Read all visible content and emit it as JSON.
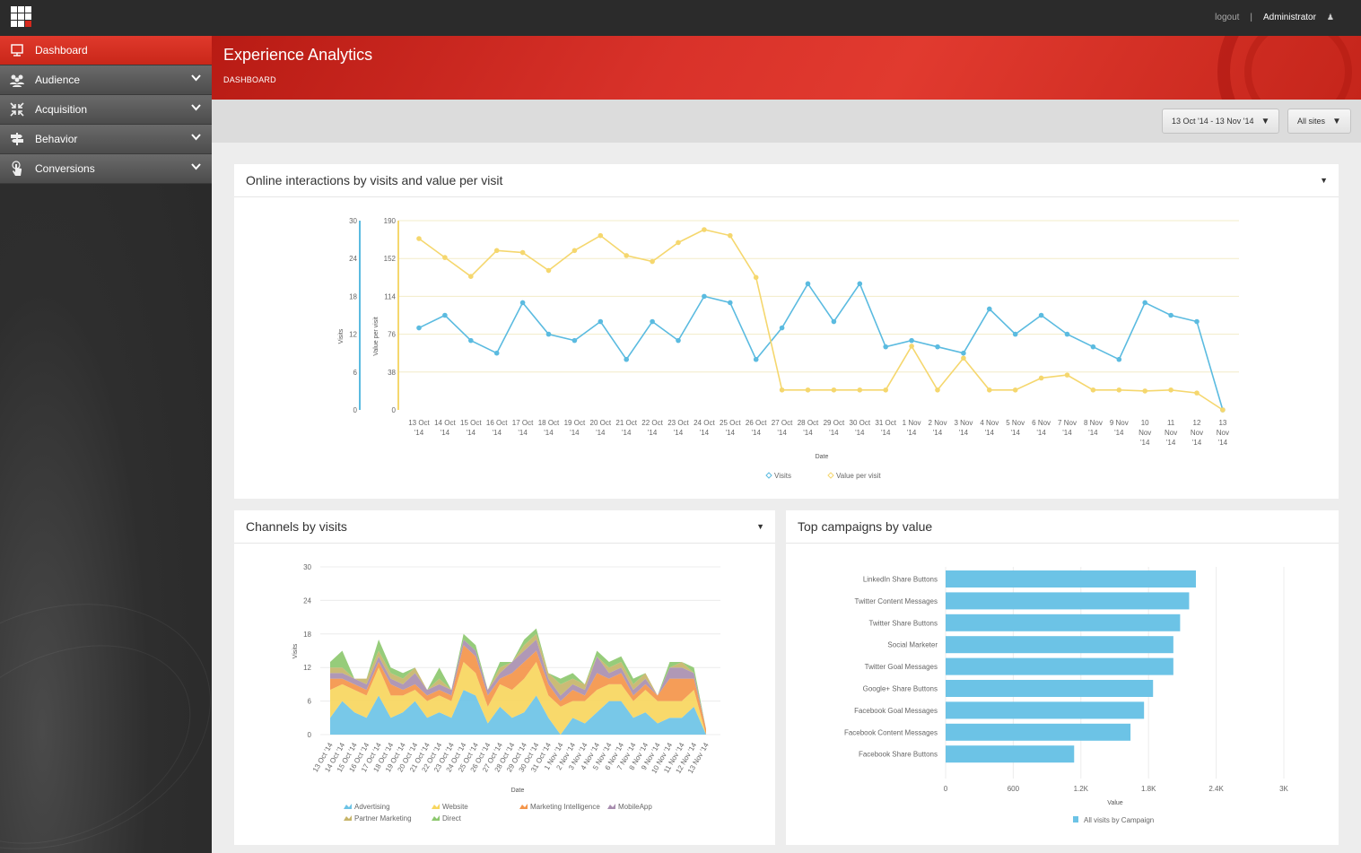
{
  "topbar": {
    "logout_label": "logout",
    "separator": "|",
    "user_label": "Administrator"
  },
  "sidebar": {
    "items": [
      {
        "label": "Dashboard",
        "icon": "monitor-icon",
        "active": true
      },
      {
        "label": "Audience",
        "icon": "people-icon"
      },
      {
        "label": "Acquisition",
        "icon": "arrows-in-icon"
      },
      {
        "label": "Behavior",
        "icon": "signpost-icon"
      },
      {
        "label": "Conversions",
        "icon": "touch-hand-icon"
      }
    ]
  },
  "header": {
    "title": "Experience Analytics",
    "breadcrumb": "DASHBOARD"
  },
  "filters": {
    "date_range": "13 Oct '14 - 13 Nov '14",
    "sites": "All sites"
  },
  "colors": {
    "visits": "#5bbbe0",
    "value_per_visit": "#f5d76e",
    "bar": "#6cc3e6",
    "accent_red": "#d6291e"
  },
  "panels": {
    "interactions_title": "Online interactions by visits and value per visit",
    "channels_title": "Channels by visits",
    "campaigns_title": "Top campaigns by value"
  },
  "chart_data": [
    {
      "type": "line",
      "title": "Online interactions by visits and value per visit",
      "xlabel": "Date",
      "categories": [
        "13 Oct '14",
        "14 Oct '14",
        "15 Oct '14",
        "16 Oct '14",
        "17 Oct '14",
        "18 Oct '14",
        "19 Oct '14",
        "20 Oct '14",
        "21 Oct '14",
        "22 Oct '14",
        "23 Oct '14",
        "24 Oct '14",
        "25 Oct '14",
        "26 Oct '14",
        "27 Oct '14",
        "28 Oct '14",
        "29 Oct '14",
        "30 Oct '14",
        "31 Oct '14",
        "1 Nov '14",
        "2 Nov '14",
        "3 Nov '14",
        "4 Nov '14",
        "5 Nov '14",
        "6 Nov '14",
        "7 Nov '14",
        "8 Nov '14",
        "9 Nov '14",
        "10 Nov '14",
        "11 Nov '14",
        "12 Nov '14",
        "13 Nov '14"
      ],
      "axes": [
        {
          "label": "Visits",
          "ylim": [
            0,
            30
          ],
          "ticks": [
            "0",
            "6",
            "12",
            "18",
            "24",
            "30"
          ]
        },
        {
          "label": "Value per visit",
          "ylim": [
            0,
            190
          ],
          "ticks": [
            "0",
            "38",
            "76",
            "114",
            "152",
            "190"
          ]
        }
      ],
      "series": [
        {
          "name": "Visits",
          "axis": 0,
          "values": [
            13,
            15,
            11,
            9,
            17,
            12,
            11,
            14,
            8,
            14,
            11,
            18,
            17,
            8,
            13,
            20,
            14,
            20,
            10,
            11,
            10,
            9,
            16,
            12,
            15,
            12,
            10,
            8,
            17,
            15,
            14,
            0
          ]
        },
        {
          "name": "Value per visit",
          "axis": 1,
          "values": [
            172,
            153,
            134,
            160,
            158,
            140,
            160,
            175,
            155,
            149,
            168,
            181,
            175,
            133,
            20,
            20,
            20,
            20,
            20,
            64,
            20,
            52,
            20,
            20,
            32,
            35,
            20,
            20,
            19,
            20,
            17,
            0
          ]
        }
      ],
      "grid": true,
      "legend": "bottom"
    },
    {
      "type": "area",
      "stacked": true,
      "title": "Channels by visits",
      "xlabel": "Date",
      "ylabel": "Visits",
      "ylim": [
        0,
        30
      ],
      "yticks": [
        "0",
        "6",
        "12",
        "18",
        "24",
        "30"
      ],
      "categories": [
        "13 Oct '14",
        "14 Oct '14",
        "15 Oct '14",
        "16 Oct '14",
        "17 Oct '14",
        "18 Oct '14",
        "19 Oct '14",
        "20 Oct '14",
        "21 Oct '14",
        "22 Oct '14",
        "23 Oct '14",
        "24 Oct '14",
        "25 Oct '14",
        "26 Oct '14",
        "27 Oct '14",
        "28 Oct '14",
        "29 Oct '14",
        "30 Oct '14",
        "31 Oct '14",
        "1 Nov '14",
        "2 Nov '14",
        "3 Nov '14",
        "4 Nov '14",
        "5 Nov '14",
        "6 Nov '14",
        "7 Nov '14",
        "8 Nov '14",
        "9 Nov '14",
        "10 Nov '14",
        "11 Nov '14",
        "12 Nov '14",
        "13 Nov '14"
      ],
      "series": [
        {
          "name": "Advertising",
          "color": "#6cc3e6",
          "values": [
            3,
            6,
            4,
            3,
            7,
            3,
            4,
            6,
            3,
            4,
            3,
            8,
            7,
            2,
            5,
            3,
            4,
            7,
            3,
            0,
            3,
            2,
            4,
            6,
            6,
            3,
            4,
            2,
            3,
            3,
            5,
            0
          ]
        },
        {
          "name": "Website",
          "color": "#f7d65e",
          "values": [
            5,
            3,
            4,
            4,
            5,
            4,
            3,
            2,
            3,
            3,
            3,
            5,
            4,
            3,
            4,
            5,
            6,
            6,
            4,
            5,
            3,
            4,
            4,
            3,
            3,
            3,
            4,
            4,
            3,
            3,
            3,
            0
          ]
        },
        {
          "name": "Marketing Intelligence",
          "color": "#f4954a",
          "values": [
            2,
            1,
            1,
            1,
            1,
            2,
            1,
            1,
            1,
            1,
            1,
            3,
            3,
            2,
            1,
            3,
            3,
            2,
            2,
            1,
            2,
            1,
            3,
            1,
            2,
            1,
            1,
            1,
            4,
            4,
            2,
            1
          ]
        },
        {
          "name": "MobileApp",
          "color": "#a98fb0",
          "values": [
            1,
            1,
            1,
            1,
            1,
            1,
            1,
            2,
            1,
            1,
            1,
            1,
            1,
            1,
            1,
            2,
            2,
            2,
            1,
            1,
            1,
            1,
            3,
            1,
            1,
            1,
            1,
            0,
            2,
            2,
            1,
            0
          ]
        },
        {
          "name": "Partner Marketing",
          "color": "#c7b56a",
          "values": [
            1,
            1,
            0,
            1,
            1,
            1,
            1,
            1,
            0,
            1,
            0,
            0,
            0,
            0,
            1,
            0,
            1,
            1,
            1,
            2,
            1,
            1,
            0,
            1,
            1,
            1,
            1,
            0,
            0,
            1,
            0,
            0
          ]
        },
        {
          "name": "Direct",
          "color": "#8dc86f",
          "values": [
            1,
            3,
            0,
            0,
            2,
            1,
            1,
            0,
            0,
            2,
            0,
            1,
            1,
            0,
            1,
            0,
            1,
            1,
            0,
            1,
            1,
            0,
            1,
            1,
            1,
            1,
            0,
            0,
            1,
            0,
            1,
            0
          ]
        }
      ],
      "grid": true,
      "legend": "bottom"
    },
    {
      "type": "bar",
      "orientation": "horizontal",
      "title": "Top campaigns by value",
      "xlabel": "Value",
      "xlim": [
        0,
        3000
      ],
      "xticks": [
        "0",
        "600",
        "1.2K",
        "1.8K",
        "2.4K",
        "3K"
      ],
      "categories": [
        "LinkedIn Share Buttons",
        "Twitter Content Messages",
        "Twitter Share Buttons",
        "Social Marketer",
        "Twitter Goal Messages",
        "Google+ Share Buttons",
        "Facebook Goal Messages",
        "Facebook Content Messages",
        "Facebook Share Buttons"
      ],
      "series": [
        {
          "name": "All visits by Campaign",
          "values": [
            2220,
            2160,
            2080,
            2020,
            2020,
            1840,
            1760,
            1640,
            1140
          ]
        }
      ],
      "grid": true,
      "legend": "bottom"
    }
  ]
}
